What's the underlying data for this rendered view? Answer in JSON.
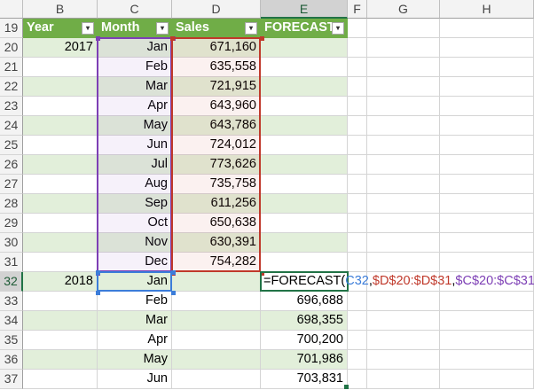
{
  "columns": [
    "B",
    "C",
    "D",
    "E",
    "F",
    "G",
    "H"
  ],
  "header_row": {
    "row_number": "19",
    "cells": [
      "Year",
      "Month",
      "Sales",
      "FORECAST"
    ]
  },
  "rows": [
    {
      "row": "20",
      "year": "2017",
      "month": "Jan",
      "sales": "671,160",
      "forecast": ""
    },
    {
      "row": "21",
      "year": "",
      "month": "Feb",
      "sales": "635,558",
      "forecast": ""
    },
    {
      "row": "22",
      "year": "",
      "month": "Mar",
      "sales": "721,915",
      "forecast": ""
    },
    {
      "row": "23",
      "year": "",
      "month": "Apr",
      "sales": "643,960",
      "forecast": ""
    },
    {
      "row": "24",
      "year": "",
      "month": "May",
      "sales": "643,786",
      "forecast": ""
    },
    {
      "row": "25",
      "year": "",
      "month": "Jun",
      "sales": "724,012",
      "forecast": ""
    },
    {
      "row": "26",
      "year": "",
      "month": "Jul",
      "sales": "773,626",
      "forecast": ""
    },
    {
      "row": "27",
      "year": "",
      "month": "Aug",
      "sales": "735,758",
      "forecast": ""
    },
    {
      "row": "28",
      "year": "",
      "month": "Sep",
      "sales": "611,256",
      "forecast": ""
    },
    {
      "row": "29",
      "year": "",
      "month": "Oct",
      "sales": "650,638",
      "forecast": ""
    },
    {
      "row": "30",
      "year": "",
      "month": "Nov",
      "sales": "630,391",
      "forecast": ""
    },
    {
      "row": "31",
      "year": "",
      "month": "Dec",
      "sales": "754,282",
      "forecast": ""
    },
    {
      "row": "32",
      "year": "2018",
      "month": "Jan",
      "sales": "",
      "forecast": ""
    },
    {
      "row": "33",
      "year": "",
      "month": "Feb",
      "sales": "",
      "forecast": "696,688"
    },
    {
      "row": "34",
      "year": "",
      "month": "Mar",
      "sales": "",
      "forecast": "698,355"
    },
    {
      "row": "35",
      "year": "",
      "month": "Apr",
      "sales": "",
      "forecast": "700,200"
    },
    {
      "row": "36",
      "year": "",
      "month": "May",
      "sales": "",
      "forecast": "701,986"
    },
    {
      "row": "37",
      "year": "",
      "month": "Jun",
      "sales": "",
      "forecast": "703,831"
    }
  ],
  "active_cell": {
    "formula_parts": [
      {
        "text": "=FORECAST(",
        "color": "#000000"
      },
      {
        "text": "C32",
        "color": "#3c7dd9"
      },
      {
        "text": ",",
        "color": "#000000"
      },
      {
        "text": "$D$20:$D$31",
        "color": "#c0392b"
      },
      {
        "text": ",",
        "color": "#000000"
      },
      {
        "text": "$C$20:$C$31",
        "color": "#7d3fb5"
      },
      {
        "text": ")",
        "color": "#000000"
      }
    ]
  },
  "colors": {
    "table_header": "#70ad47",
    "band": "#e2efda",
    "ref_c32": "#3c7dd9",
    "ref_sales": "#c0392b",
    "ref_month": "#7d3fb5",
    "selection": "#217346"
  }
}
